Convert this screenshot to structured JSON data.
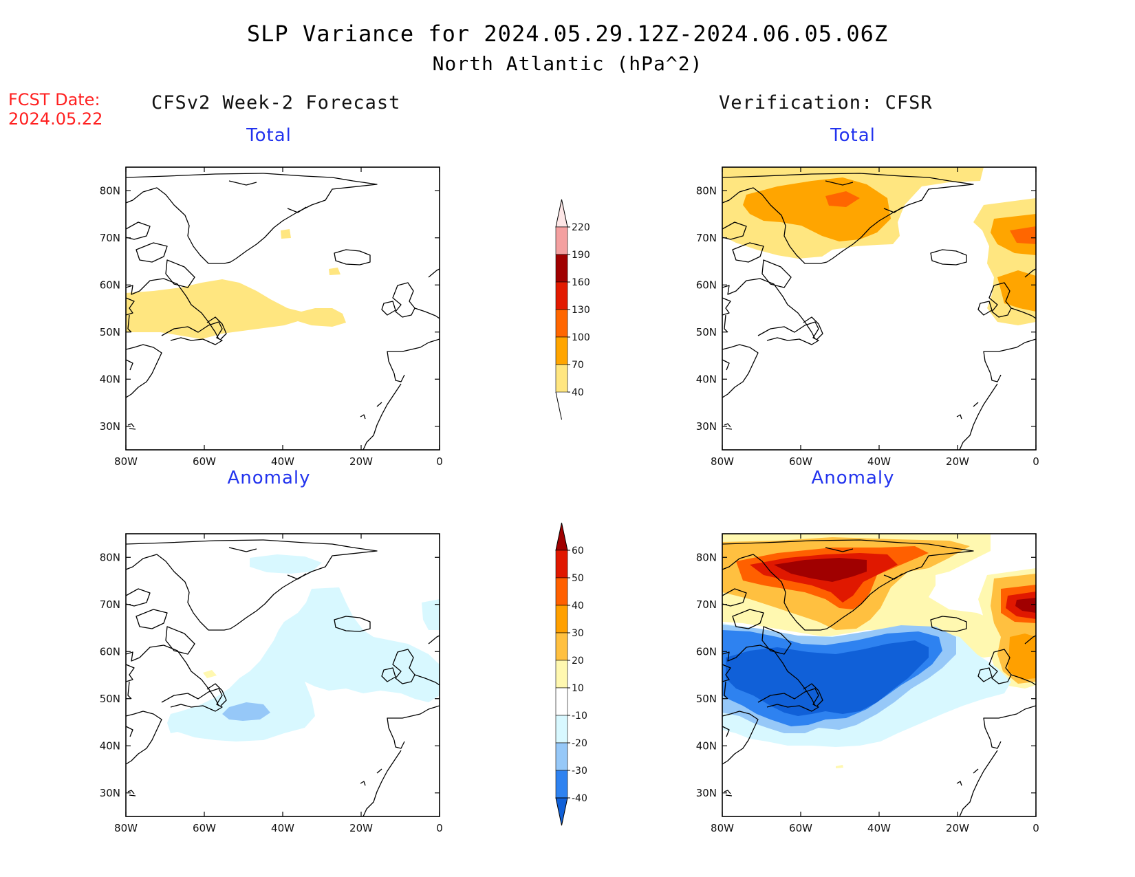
{
  "title": {
    "line1": "SLP Variance for 2024.05.29.12Z-2024.06.05.06Z",
    "line2": "North Atlantic (hPa^2)"
  },
  "forecast_date": {
    "label": "FCST Date:",
    "value": "2024.05.22"
  },
  "columns": {
    "left": "CFSv2 Week-2 Forecast",
    "right": "Verification: CFSR"
  },
  "panels": {
    "fcst_total": "Total",
    "fcst_anomaly": "Anomaly",
    "ver_total": "Total",
    "ver_anomaly": "Anomaly"
  },
  "axes": {
    "lat_labels": [
      "80N",
      "70N",
      "60N",
      "50N",
      "40N",
      "30N"
    ],
    "lat_values": [
      80,
      70,
      60,
      50,
      40,
      30
    ],
    "lon_labels": [
      "80W",
      "60W",
      "40W",
      "20W",
      "0"
    ],
    "lon_values": [
      -80,
      -60,
      -40,
      -20,
      0
    ],
    "lat_range": [
      25,
      85
    ],
    "lon_range": [
      -80,
      0
    ]
  },
  "total_colorbar": {
    "labels": [
      "40",
      "70",
      "100",
      "130",
      "160",
      "190",
      "220"
    ],
    "colors": [
      "#ffe680",
      "#ffa500",
      "#ff6600",
      "#e21a00",
      "#a00000",
      "#f4a0a0",
      "#fde6e6"
    ]
  },
  "anomaly_colorbar": {
    "labels": [
      "-40",
      "-30",
      "-20",
      "-10",
      "10",
      "20",
      "30",
      "40",
      "50",
      "60"
    ],
    "colors": [
      "#1060d8",
      "#2e82f0",
      "#96c8f8",
      "#d8f8ff",
      "#ffffff",
      "#fff8b0",
      "#ffc040",
      "#ffa000",
      "#ff6000",
      "#e01800",
      "#a00000"
    ]
  }
}
